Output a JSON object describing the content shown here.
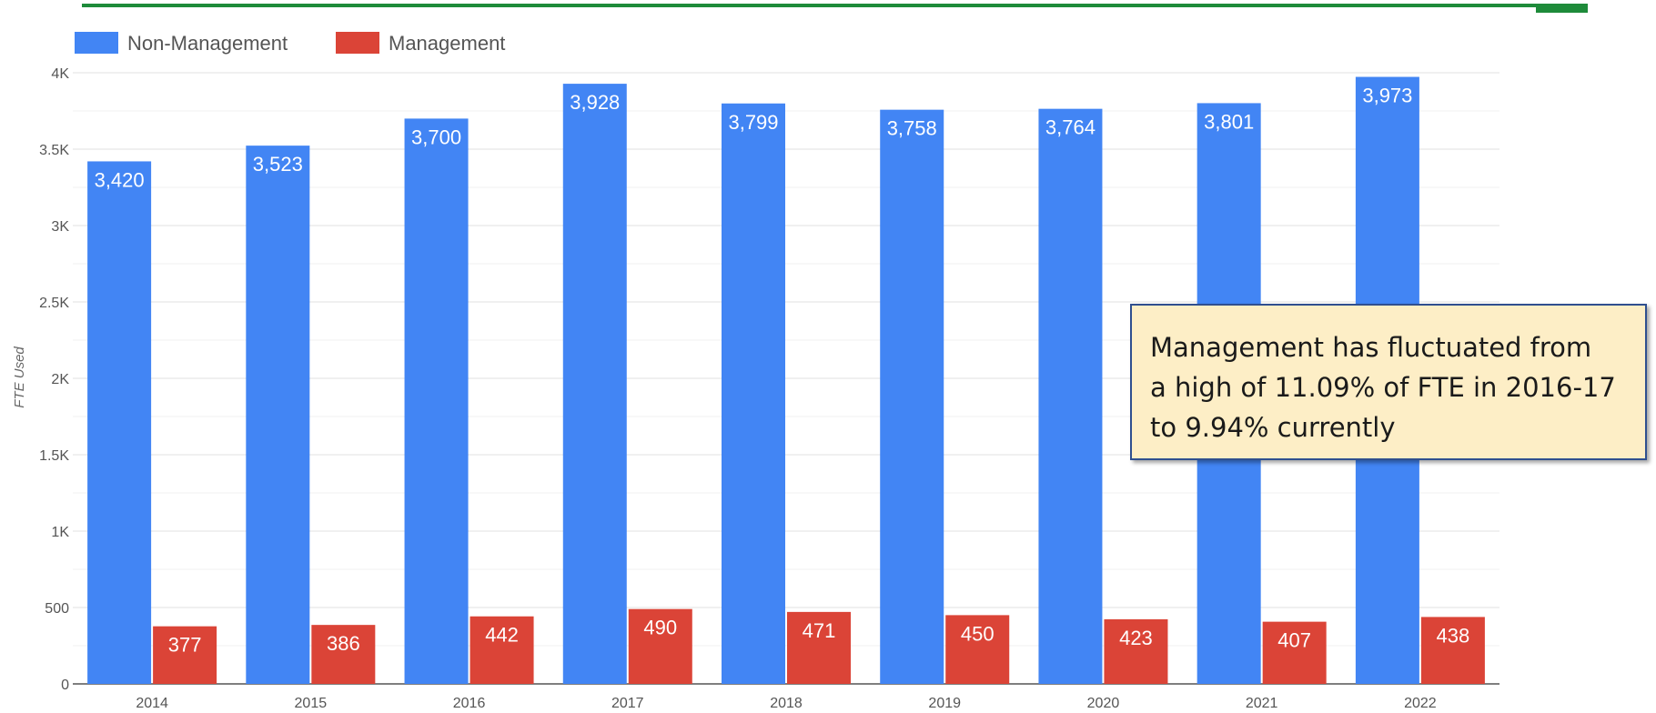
{
  "colors": {
    "non_management": "#4285f4",
    "management": "#db4437",
    "top_rule": "#1e8b3a",
    "callout_bg": "#fdeec6",
    "callout_border": "#2f4f8f"
  },
  "callout": {
    "lines": [
      "Management has fluctuated from",
      "a high of 11.09% of FTE in 2016-17",
      "to 9.94% currently"
    ]
  },
  "chart_data": {
    "type": "bar",
    "title": "",
    "xlabel": "",
    "ylabel": "FTE Used",
    "ylim": [
      0,
      4000
    ],
    "yticks": [
      0,
      500,
      1000,
      1500,
      2000,
      2500,
      3000,
      3500,
      4000
    ],
    "ytick_labels": [
      "0",
      "500",
      "1K",
      "1.5K",
      "2K",
      "2.5K",
      "3K",
      "3.5K",
      "4K"
    ],
    "grid": true,
    "legend_position": "top-left",
    "categories": [
      "2014",
      "2015",
      "2016",
      "2017",
      "2018",
      "2019",
      "2020",
      "2021",
      "2022"
    ],
    "series": [
      {
        "name": "Non-Management",
        "color": "#4285f4",
        "values": [
          3420,
          3523,
          3700,
          3928,
          3799,
          3758,
          3764,
          3801,
          3973
        ],
        "labels": [
          "3,420",
          "3,523",
          "3,700",
          "3,928",
          "3,799",
          "3,758",
          "3,764",
          "3,801",
          "3,973"
        ]
      },
      {
        "name": "Management",
        "color": "#db4437",
        "values": [
          377,
          386,
          442,
          490,
          471,
          450,
          423,
          407,
          438
        ],
        "labels": [
          "377",
          "386",
          "442",
          "490",
          "471",
          "450",
          "423",
          "407",
          "438"
        ]
      }
    ]
  }
}
